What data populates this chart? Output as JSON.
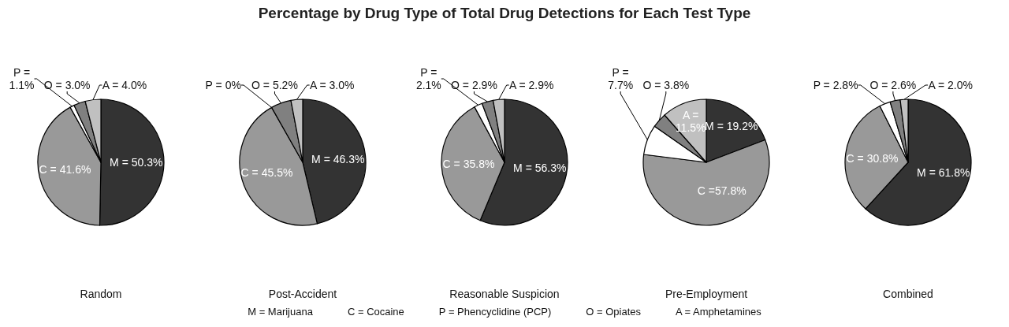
{
  "chart_data": [
    {
      "type": "pie",
      "xlabel": "Random",
      "categories": [
        "M = 50.3%",
        "C = 41.6%",
        "P =\n1.1%",
        "O = 3.0%",
        "A = 4.0%"
      ],
      "values": [
        50.3,
        41.6,
        1.1,
        3.0,
        4.0
      ],
      "colors": [
        "#333333",
        "#999999",
        "#ffffff",
        "#808080",
        "#c0c0c0"
      ],
      "legend": false
    },
    {
      "type": "pie",
      "xlabel": "Post-Accident",
      "categories": [
        "M = 46.3%",
        "C = 45.5%",
        "P = 0%",
        "O = 5.2%",
        "A = 3.0%"
      ],
      "values": [
        46.3,
        45.5,
        0,
        5.2,
        3.0
      ],
      "colors": [
        "#333333",
        "#999999",
        "#ffffff",
        "#808080",
        "#c0c0c0"
      ],
      "legend": false
    },
    {
      "type": "pie",
      "title": "Percentage by Drug Type of Total Drug Detections for Each Test Type",
      "annotations": [
        "M = Marijuana",
        "C = Cocaine",
        "P = Phencyclidine (PCP)",
        "O = Opiates",
        "A = Amphetamines"
      ],
      "xlabel": "Reasonable Suspicion",
      "categories": [
        "M = 56.3%",
        "C = 35.8%",
        "P =\n2.1%",
        "O = 2.9%",
        "A = 2.9%"
      ],
      "values": [
        56.3,
        35.8,
        2.1,
        2.9,
        2.9
      ],
      "colors": [
        "#333333",
        "#999999",
        "#ffffff",
        "#808080",
        "#c0c0c0"
      ],
      "legend": false
    },
    {
      "type": "pie",
      "xlabel": "Pre-Employment",
      "categories": [
        "M = 19.2%",
        "C =57.8%",
        "P =\n7.7%",
        "O = 3.8%",
        "A =\n11.5%"
      ],
      "values": [
        19.2,
        57.8,
        7.7,
        3.8,
        11.5
      ],
      "colors": [
        "#333333",
        "#999999",
        "#ffffff",
        "#808080",
        "#c0c0c0"
      ],
      "legend": false
    },
    {
      "type": "pie",
      "xlabel": "Combined",
      "categories": [
        "M = 61.8%",
        "C = 30.8%",
        "P = 2.8%",
        "O = 2.6%",
        "A = 2.0%"
      ],
      "values": [
        61.8,
        30.8,
        2.8,
        2.6,
        2.0
      ],
      "colors": [
        "#333333",
        "#999999",
        "#ffffff",
        "#808080",
        "#c0c0c0"
      ],
      "legend": false
    }
  ]
}
